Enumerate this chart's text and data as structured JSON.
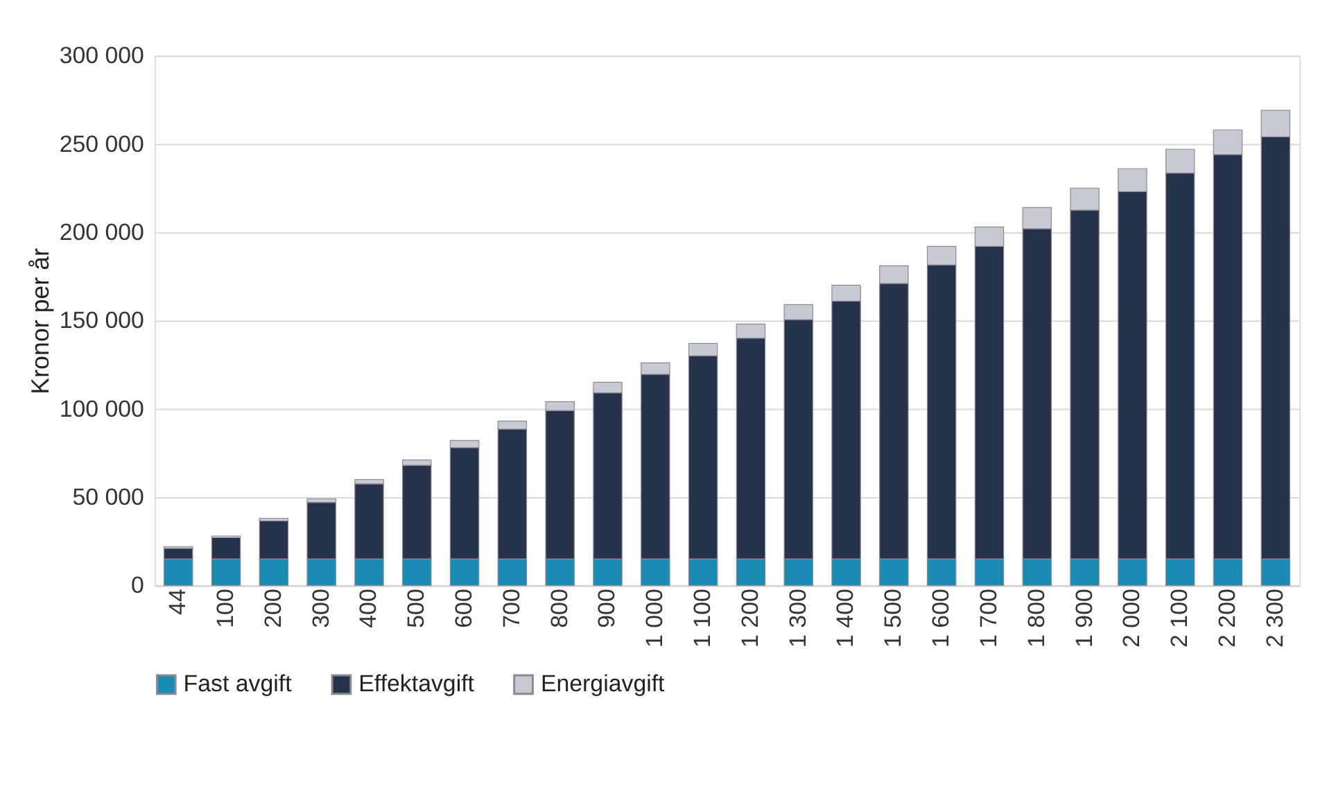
{
  "chart_data": {
    "type": "bar",
    "stacked": true,
    "ylabel": "Kronor per år",
    "categories": [
      "44",
      "100",
      "200",
      "300",
      "400",
      "500",
      "600",
      "700",
      "800",
      "900",
      "1 000",
      "1 100",
      "1 200",
      "1 300",
      "1 400",
      "1 500",
      "1 600",
      "1 700",
      "1 800",
      "1 900",
      "2 000",
      "2 100",
      "2 200",
      "2 300"
    ],
    "series": [
      {
        "name": "Fast avgift",
        "color": "#1a8bb3",
        "values": [
          15000,
          15000,
          15000,
          15000,
          15000,
          15000,
          15000,
          15000,
          15000,
          15000,
          15000,
          15000,
          15000,
          15000,
          15000,
          15000,
          15000,
          15000,
          15000,
          15000,
          15000,
          15000,
          15000,
          15000
        ]
      },
      {
        "name": "Effektavgift",
        "color": "#27334a",
        "values": [
          6000,
          12000,
          21500,
          32000,
          42500,
          53000,
          63000,
          73500,
          84000,
          94000,
          104500,
          115000,
          125000,
          135500,
          146000,
          156000,
          166500,
          177000,
          187000,
          197500,
          208000,
          218500,
          229000,
          239000
        ]
      },
      {
        "name": "Energiavgift",
        "color": "#c8c9d2",
        "values": [
          1000,
          1000,
          1500,
          2000,
          2500,
          3000,
          4000,
          4500,
          5000,
          6000,
          6500,
          7000,
          8000,
          8500,
          9000,
          10000,
          10500,
          11000,
          12000,
          12500,
          13000,
          13500,
          14000,
          15000
        ]
      }
    ],
    "ylim": [
      0,
      300000
    ],
    "yticks": [
      0,
      {
        "value": 50000,
        "label": "50 000"
      },
      {
        "value": 100000,
        "label": "100 000"
      },
      {
        "value": 150000,
        "label": "150 000"
      },
      {
        "value": 200000,
        "label": "200 000"
      },
      {
        "value": 250000,
        "label": "250 000"
      },
      {
        "value": 300000,
        "label": "300 000"
      }
    ],
    "grid": "y",
    "legend": "bottom"
  }
}
